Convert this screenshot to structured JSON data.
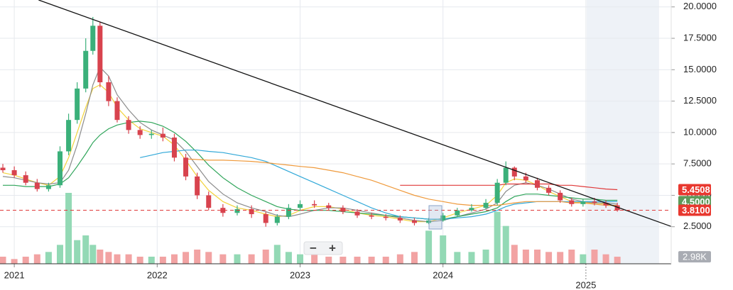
{
  "chart_data": {
    "type": "candlestick",
    "xlim": [
      2020.9,
      2025.597
    ],
    "ylim": [
      -0.45,
      20.55
    ],
    "xticks": [
      2021,
      2022,
      2023,
      2024,
      2025
    ],
    "yticks": [
      {
        "value": 2.5,
        "label": "2.5000"
      },
      {
        "value": 5,
        "label": "5.0000"
      },
      {
        "value": 7.5,
        "label": "7.5000"
      },
      {
        "value": 10,
        "label": "10.0000"
      },
      {
        "value": 12.5,
        "label": "12.5000"
      },
      {
        "value": 15,
        "label": "15.0000"
      },
      {
        "value": 17.5,
        "label": "17.5000"
      },
      {
        "value": 20,
        "label": "20.0000"
      }
    ],
    "grid": true,
    "up_color": "#3bb07a",
    "down_color": "#d8434e",
    "volume_up_color": "#93d9b5",
    "volume_down_color": "#f2a3a3",
    "x": [
      2020.92,
      2021.0,
      2021.08,
      2021.16,
      2021.24,
      2021.32,
      2021.38,
      2021.44,
      2021.5,
      2021.55,
      2021.6,
      2021.66,
      2021.72,
      2021.8,
      2021.88,
      2021.96,
      2022.04,
      2022.12,
      2022.2,
      2022.28,
      2022.36,
      2022.46,
      2022.56,
      2022.66,
      2022.76,
      2022.84,
      2022.92,
      2023.0,
      2023.1,
      2023.2,
      2023.3,
      2023.4,
      2023.5,
      2023.6,
      2023.7,
      2023.8,
      2023.9,
      2024.0,
      2024.1,
      2024.2,
      2024.3,
      2024.38,
      2024.44,
      2024.5,
      2024.58,
      2024.66,
      2024.74,
      2024.82,
      2024.9,
      2024.98,
      2025.06,
      2025.14,
      2025.22
    ],
    "open": [
      7.2,
      7.0,
      6.6,
      6.0,
      5.5,
      5.8,
      8.5,
      11.0,
      13.5,
      16.5,
      18.5,
      14.0,
      12.5,
      11.0,
      10.2,
      9.8,
      9.9,
      9.6,
      8.0,
      6.5,
      5.0,
      4.0,
      3.6,
      3.9,
      3.5,
      2.8,
      3.3,
      4.0,
      4.3,
      4.2,
      4.0,
      3.7,
      3.4,
      3.3,
      3.2,
      3.0,
      2.8,
      3.0,
      3.4,
      3.8,
      4.0,
      4.4,
      6.0,
      7.2,
      6.5,
      6.2,
      5.6,
      5.2,
      4.6,
      4.3,
      4.5,
      4.4,
      4.2
    ],
    "high": [
      7.5,
      7.3,
      6.9,
      6.3,
      6.0,
      8.9,
      11.5,
      14.0,
      17.5,
      19.2,
      18.8,
      14.5,
      12.8,
      11.3,
      10.5,
      10.2,
      10.4,
      9.9,
      8.3,
      6.8,
      5.3,
      4.3,
      4.2,
      4.2,
      3.7,
      3.5,
      4.3,
      4.6,
      4.6,
      4.4,
      4.2,
      3.9,
      3.6,
      3.5,
      3.4,
      3.2,
      3.2,
      3.6,
      4.0,
      4.3,
      4.7,
      6.3,
      7.7,
      7.3,
      6.8,
      6.4,
      5.8,
      5.4,
      4.8,
      4.7,
      4.8,
      4.6,
      4.4
    ],
    "low": [
      6.8,
      6.4,
      5.8,
      5.3,
      5.3,
      5.6,
      8.2,
      10.7,
      13.2,
      16.2,
      13.6,
      12.1,
      10.8,
      9.9,
      9.5,
      9.5,
      9.3,
      7.7,
      6.2,
      4.7,
      3.8,
      3.3,
      3.4,
      3.2,
      2.5,
      2.6,
      3.1,
      3.8,
      4.0,
      3.8,
      3.5,
      3.2,
      3.1,
      3.0,
      2.8,
      2.6,
      2.7,
      2.9,
      3.3,
      3.7,
      3.9,
      4.2,
      5.8,
      6.2,
      6.0,
      5.4,
      5.0,
      4.4,
      4.1,
      4.1,
      4.2,
      4.0,
      3.7
    ],
    "close": [
      7.0,
      6.6,
      6.0,
      5.5,
      5.8,
      8.5,
      11.0,
      13.5,
      16.5,
      18.5,
      14.0,
      12.5,
      11.0,
      10.2,
      9.8,
      9.9,
      9.6,
      8.0,
      6.5,
      5.0,
      4.0,
      3.6,
      3.9,
      3.5,
      2.8,
      3.3,
      4.0,
      4.3,
      4.2,
      4.0,
      3.7,
      3.4,
      3.3,
      3.2,
      3.0,
      2.8,
      3.0,
      3.4,
      3.8,
      4.0,
      4.4,
      6.0,
      7.2,
      6.5,
      6.2,
      5.6,
      5.2,
      4.6,
      4.3,
      4.5,
      4.4,
      4.2,
      3.81
    ],
    "volume": [
      3,
      2,
      3,
      4,
      5,
      8,
      30,
      10,
      12,
      8,
      6,
      5,
      4,
      4,
      3,
      3,
      3,
      4,
      5,
      6,
      5,
      4,
      4,
      4,
      6,
      8,
      5,
      4,
      4,
      3,
      3,
      3,
      3,
      3,
      4,
      5,
      14,
      12,
      5,
      5,
      6,
      22,
      16,
      8,
      6,
      6,
      5,
      5,
      6,
      4,
      6,
      4,
      2.98
    ],
    "volume_lim": [
      0,
      36
    ],
    "volume_label": "2.98K",
    "lines": [
      {
        "color": "#f2d33b",
        "values": [
          6.8,
          6.6,
          6.3,
          6.0,
          5.8,
          6.5,
          8.0,
          10.0,
          12.0,
          13.5,
          13.8,
          13.2,
          12.0,
          11.0,
          10.3,
          10.0,
          9.7,
          9.0,
          7.8,
          6.5,
          5.4,
          4.5,
          4.0,
          3.8,
          3.5,
          3.3,
          3.4,
          3.8,
          4.1,
          4.1,
          3.9,
          3.6,
          3.4,
          3.3,
          3.1,
          2.9,
          2.9,
          3.2,
          3.6,
          3.9,
          4.2,
          5.0,
          6.0,
          6.3,
          6.2,
          5.8,
          5.3,
          4.9,
          4.5,
          4.4,
          4.4,
          4.3,
          4.1
        ]
      },
      {
        "color": "#8c8c8c",
        "values": [
          6.5,
          6.4,
          6.2,
          6.0,
          5.9,
          6.0,
          7.0,
          9.0,
          11.5,
          13.8,
          15.2,
          14.5,
          13.0,
          11.8,
          10.8,
          10.2,
          9.8,
          9.4,
          8.5,
          7.3,
          6.1,
          5.1,
          4.4,
          4.0,
          3.7,
          3.4,
          3.3,
          3.5,
          3.8,
          4.0,
          4.0,
          3.8,
          3.6,
          3.4,
          3.2,
          3.0,
          2.9,
          3.0,
          3.3,
          3.6,
          3.9,
          4.4,
          5.3,
          5.8,
          6.0,
          5.8,
          5.5,
          5.1,
          4.7,
          4.5,
          4.4,
          4.4,
          4.3
        ]
      },
      {
        "color": "#2fa55a",
        "values": [
          5.8,
          5.8,
          5.7,
          5.7,
          5.7,
          5.9,
          6.4,
          7.3,
          8.3,
          9.2,
          9.8,
          10.3,
          10.6,
          10.8,
          10.9,
          10.8,
          10.5,
          10.0,
          9.3,
          8.4,
          7.4,
          6.4,
          5.6,
          5.0,
          4.5,
          4.1,
          3.9,
          3.8,
          3.8,
          3.8,
          3.7,
          3.6,
          3.5,
          3.4,
          3.3,
          3.2,
          3.1,
          3.1,
          3.3,
          3.5,
          3.7,
          4.0,
          4.5,
          4.9,
          5.1,
          5.1,
          5.0,
          4.9,
          4.8,
          4.7,
          4.7,
          4.6,
          4.6
        ]
      },
      {
        "color": "#31a8d8",
        "values": [
          null,
          null,
          null,
          null,
          null,
          null,
          null,
          null,
          null,
          null,
          null,
          null,
          null,
          null,
          8.0,
          8.2,
          8.4,
          8.5,
          8.6,
          8.6,
          8.5,
          8.4,
          8.2,
          8.0,
          7.7,
          7.3,
          6.9,
          6.5,
          6.0,
          5.5,
          5.0,
          4.5,
          4.0,
          3.6,
          3.3,
          3.2,
          3.1,
          3.1,
          3.2,
          3.3,
          3.5,
          3.8,
          4.1,
          4.3,
          4.4,
          4.5,
          4.5,
          4.5,
          4.5,
          4.5,
          4.5,
          4.5,
          4.5
        ]
      },
      {
        "color": "#ef9a3c",
        "values": [
          null,
          null,
          null,
          null,
          null,
          null,
          null,
          null,
          null,
          null,
          null,
          null,
          null,
          null,
          null,
          null,
          null,
          null,
          7.9,
          7.85,
          7.8,
          7.8,
          7.75,
          7.7,
          7.6,
          7.5,
          7.4,
          7.3,
          7.2,
          7.0,
          6.8,
          6.5,
          6.2,
          5.8,
          5.4,
          5.0,
          4.7,
          4.5,
          4.3,
          4.2,
          4.2,
          4.2,
          4.3,
          4.4,
          4.5,
          4.5,
          4.5,
          4.5,
          4.4,
          4.4,
          4.3,
          4.2,
          4.2
        ]
      },
      {
        "color": "#e03a3a",
        "values": [
          null,
          null,
          null,
          null,
          null,
          null,
          null,
          null,
          null,
          null,
          null,
          null,
          null,
          null,
          null,
          null,
          null,
          null,
          null,
          null,
          null,
          null,
          null,
          null,
          null,
          null,
          null,
          null,
          null,
          null,
          null,
          null,
          null,
          null,
          5.8,
          5.8,
          5.8,
          5.8,
          5.8,
          5.8,
          5.8,
          5.8,
          5.9,
          5.9,
          5.9,
          5.9,
          5.9,
          5.8,
          5.8,
          5.7,
          5.6,
          5.5,
          5.45
        ]
      }
    ],
    "trendline": {
      "color": "#111111",
      "x": [
        2021.17,
        2025.6
      ],
      "values": [
        20.55,
        2.51
      ]
    },
    "future_shade": [
      2025.005,
      2025.512
    ],
    "last_price_line": {
      "value": 3.81,
      "color": "#e03a3a"
    },
    "price_labels": [
      {
        "value": 5.4508,
        "label": "5.4508",
        "color": "#e8382f"
      },
      {
        "value": 4.5,
        "label": "4.5000",
        "color": "#5d9a5a"
      },
      {
        "value": 3.81,
        "label": "3.8100",
        "color": "#e8382f"
      }
    ],
    "zoom_controls": [
      "−",
      "+"
    ]
  }
}
